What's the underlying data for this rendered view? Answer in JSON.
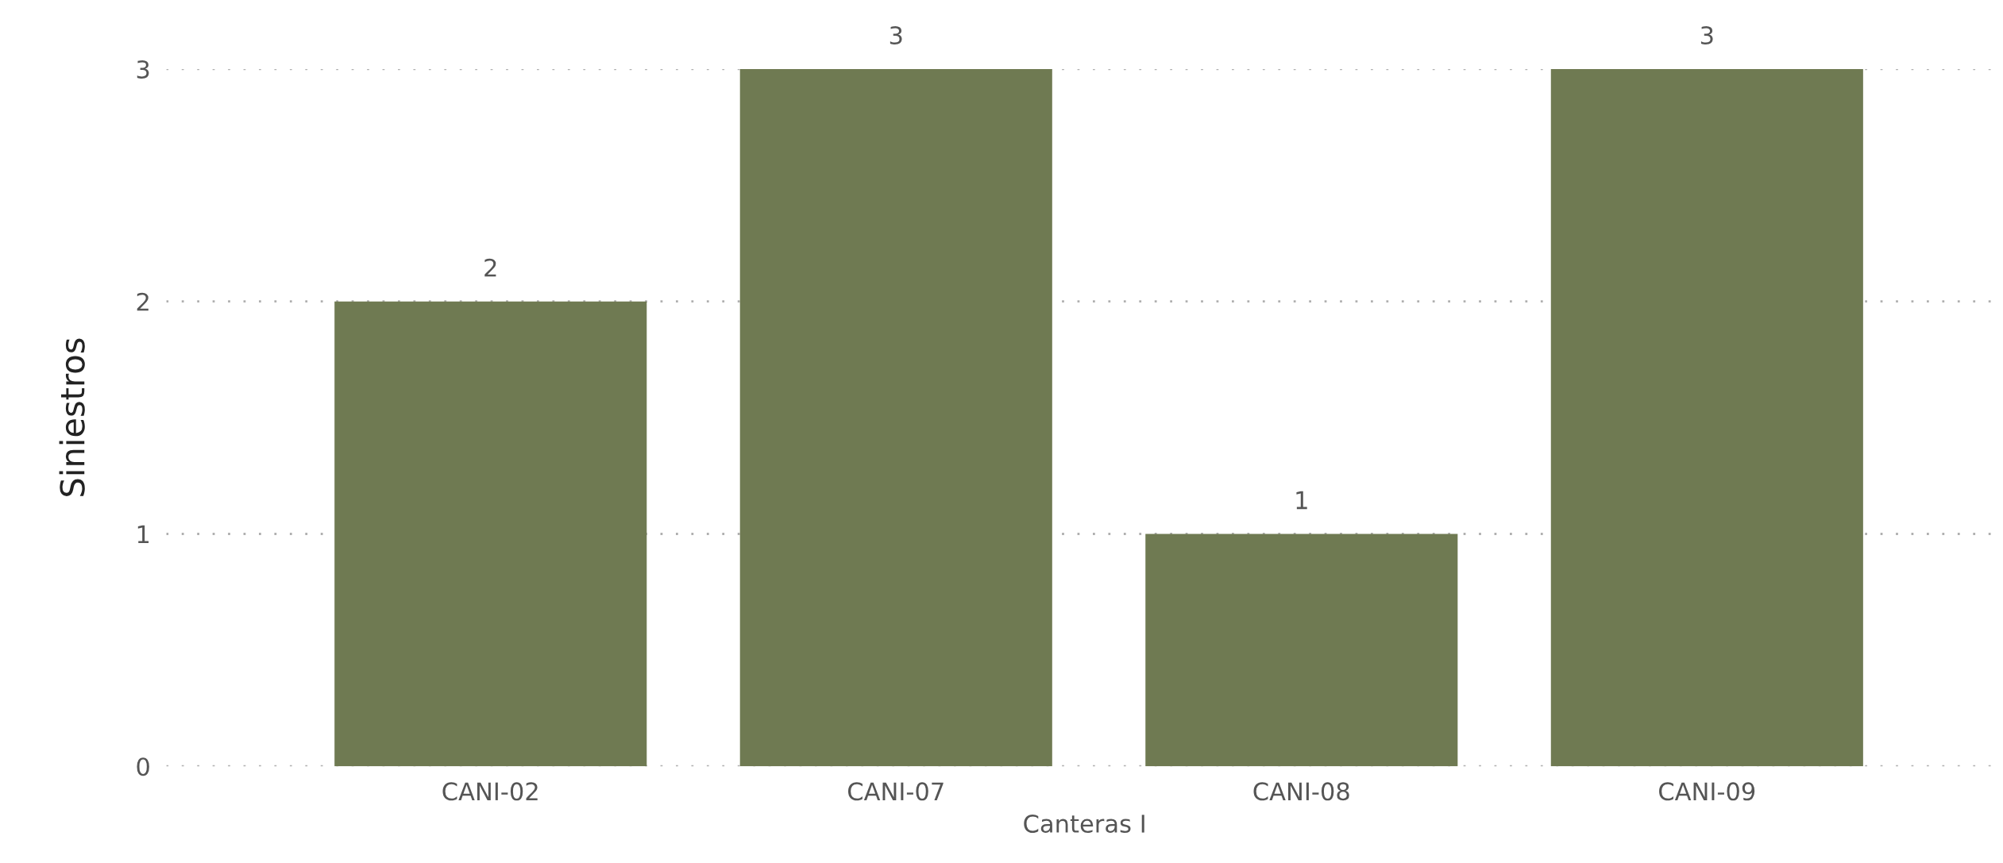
{
  "chart_data": {
    "type": "bar",
    "xlabel": "Canteras I",
    "ylabel": "Siniestros",
    "categories": [
      "CANI-02",
      "CANI-07",
      "CANI-08",
      "CANI-09"
    ],
    "values": [
      2,
      3,
      1,
      3
    ],
    "color": "#6f7a52",
    "ylim": [
      0,
      3
    ],
    "yticks": [
      0,
      1,
      2,
      3
    ],
    "grid": "y",
    "data_labels": true
  }
}
